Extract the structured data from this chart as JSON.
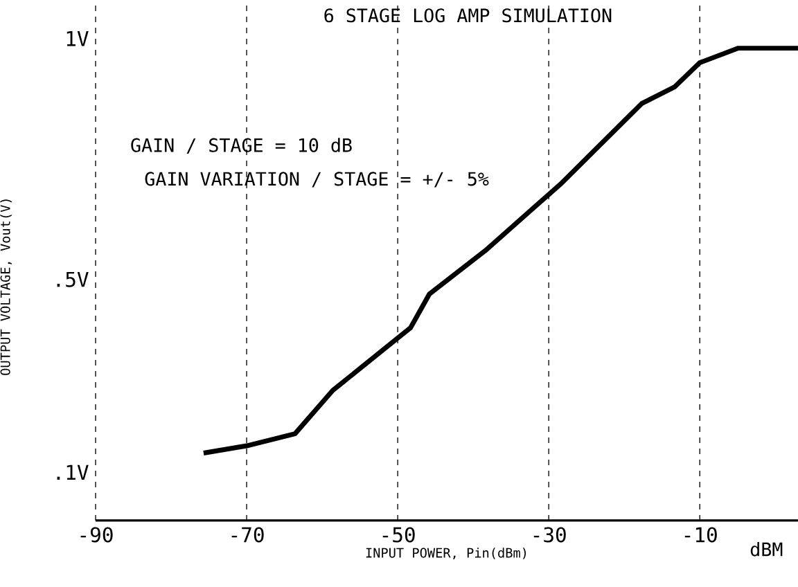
{
  "chart_data": {
    "type": "line",
    "title": "6 STAGE LOG AMP SIMULATION",
    "xlabel": "INPUT POWER, Pin(dBm)",
    "ylabel": "OUTPUT VOLTAGE, Vout(V)",
    "annotations": [
      "GAIN / STAGE = 10 dB",
      "GAIN VARIATION / STAGE = +/- 5%",
      "dBM"
    ],
    "x": [
      -75.7,
      -70,
      -63.6,
      -58.6,
      -48.3,
      -45.8,
      -38.4,
      -28.3,
      -23.8,
      -17.7,
      -13.3,
      -10,
      -4.9,
      3
    ],
    "series": [
      {
        "color": "#000000",
        "values": [
          0.14,
          0.155,
          0.18,
          0.27,
          0.4,
          0.47,
          0.56,
          0.7,
          0.77,
          0.865,
          0.9,
          0.95,
          0.98,
          0.98
        ]
      }
    ],
    "xlim": [
      -90,
      3
    ],
    "ylim": [
      0,
      1.08
    ],
    "xticks": [
      -90,
      -70,
      -50,
      -30,
      -10
    ],
    "yticks": [
      {
        "value": 0.1,
        "label": ".1V"
      },
      {
        "value": 0.5,
        "label": ".5V"
      },
      {
        "value": 1,
        "label": "1V"
      }
    ],
    "grid": "x",
    "marker": "none",
    "line_style": "solid"
  }
}
